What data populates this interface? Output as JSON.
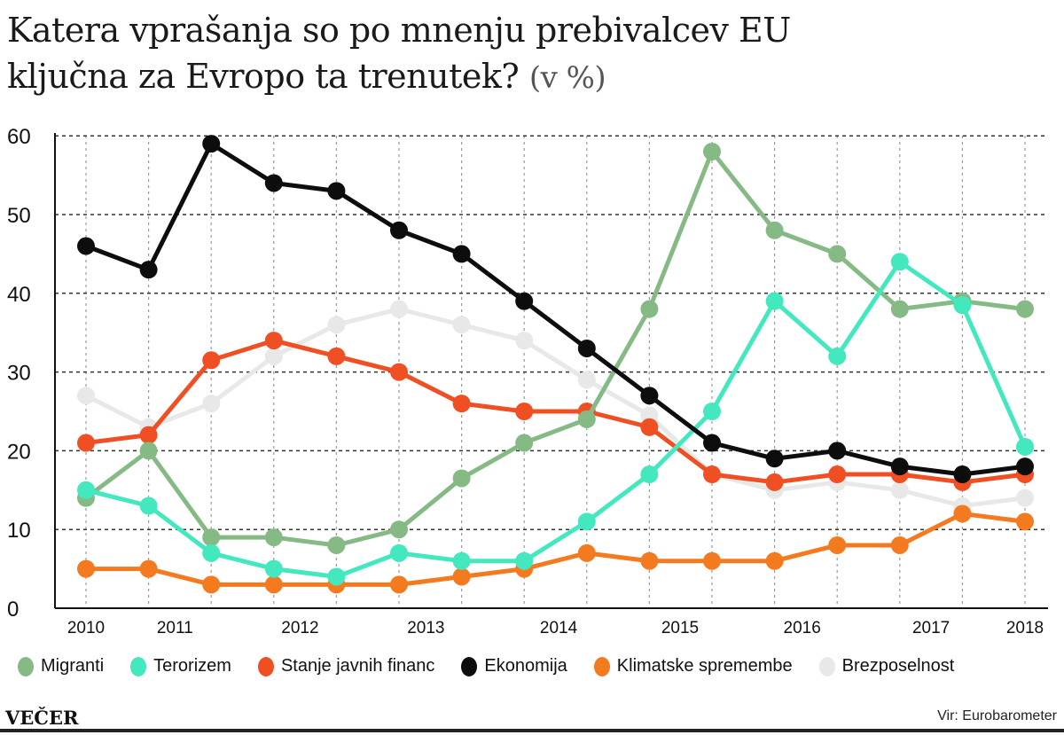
{
  "title_line1": "Katera vprašanja so po mnenju prebivalcev EU",
  "title_line2": "ključna za Evropo ta trenutek?",
  "title_unit": "(v %)",
  "brand": "VEČER",
  "source": "Vir: Eurobarometer",
  "chart_data": {
    "type": "line",
    "title": "Katera vprašanja so po mnenju prebivalcev EU ključna za Evropo ta trenutek? (v %)",
    "xlabel": "",
    "ylabel": "%",
    "ylim": [
      0,
      60
    ],
    "yticks": [
      0,
      10,
      20,
      30,
      40,
      50,
      60
    ],
    "x": [
      0,
      1,
      2,
      3,
      4,
      5,
      6,
      7,
      8,
      9,
      10,
      11,
      12,
      13,
      14,
      15
    ],
    "xticks": [
      {
        "label": "2010",
        "at": 0
      },
      {
        "label": "2011",
        "at": 1.42
      },
      {
        "label": "2012",
        "at": 3.42
      },
      {
        "label": "2013",
        "at": 5.43
      },
      {
        "label": "2014",
        "at": 7.55
      },
      {
        "label": "2015",
        "at": 9.49
      },
      {
        "label": "2016",
        "at": 11.44
      },
      {
        "label": "2017",
        "at": 13.5
      },
      {
        "label": "2018",
        "at": 15
      }
    ],
    "grid": true,
    "legend_position": "bottom",
    "series": [
      {
        "name": "Brezposelnost",
        "color": "#e8e8e8",
        "values": [
          27,
          23,
          26,
          32,
          36,
          38,
          36,
          34,
          29,
          24.5,
          17,
          15,
          16,
          15,
          13,
          14
        ]
      },
      {
        "name": "Klimatske spremembe",
        "color": "#f47a20",
        "values": [
          5,
          5,
          3,
          3,
          3,
          3,
          4,
          5,
          7,
          6,
          6,
          6,
          8,
          8,
          12,
          11
        ]
      },
      {
        "name": "Stanje javnih financ",
        "color": "#f04e23",
        "values": [
          21,
          22,
          31.5,
          34,
          32,
          30,
          26,
          25,
          25,
          23,
          17,
          16,
          17,
          17,
          16,
          17
        ]
      },
      {
        "name": "Migranti",
        "color": "#86ba85",
        "values": [
          14,
          20,
          9,
          9,
          8,
          10,
          16.5,
          21,
          24,
          38,
          58,
          48,
          45,
          38,
          39,
          38
        ]
      },
      {
        "name": "Terorizem",
        "color": "#44e8bf",
        "values": [
          15,
          13,
          7,
          5,
          4,
          7,
          6,
          6,
          11,
          17,
          25,
          39,
          32,
          44,
          38.5,
          20.5
        ]
      },
      {
        "name": "Ekonomija",
        "color": "#0d0d0d",
        "values": [
          46,
          43,
          59,
          54,
          53,
          48,
          45,
          39,
          33,
          27,
          21,
          19,
          20,
          18,
          17,
          18
        ]
      }
    ],
    "legend_order": [
      "Migranti",
      "Terorizem",
      "Stanje javnih financ",
      "Ekonomija",
      "Klimatske spremembe",
      "Brezposelnost"
    ]
  }
}
